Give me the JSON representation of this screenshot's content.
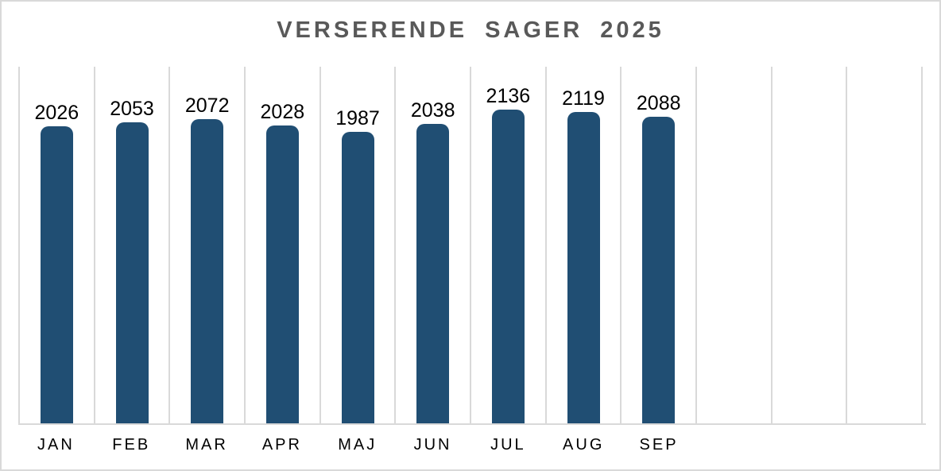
{
  "chart_data": {
    "type": "bar",
    "title": "VERSERENDE SAGER 2025",
    "categories": [
      "JAN",
      "FEB",
      "MAR",
      "APR",
      "MAJ",
      "JUN",
      "JUL",
      "AUG",
      "SEP"
    ],
    "values": [
      2026,
      2053,
      2072,
      2028,
      1987,
      2038,
      2136,
      2119,
      2088
    ],
    "xlabel": "",
    "ylabel": "",
    "ylim": [
      0,
      2430
    ],
    "grid": "vertical-gridlines-only",
    "legend": "none",
    "data_labels_position": "above-bar",
    "layout": {
      "total_columns": 12,
      "gridline_count": 13
    },
    "colors": {
      "bar": "#204e73",
      "gridline": "#d9d9d9",
      "axis_line": "#d9d9d9",
      "frame_border": "#d9d9d9",
      "title_text": "#595959",
      "label_text": "#000000",
      "background": "#ffffff"
    }
  }
}
